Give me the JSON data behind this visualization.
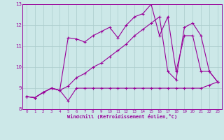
{
  "background_color": "#cce8e8",
  "line_color": "#990099",
  "grid_color": "#aacccc",
  "xlabel": "Windchill (Refroidissement éolien,°C)",
  "xlim": [
    0,
    23
  ],
  "ylim": [
    8,
    13
  ],
  "yticks": [
    8,
    9,
    10,
    11,
    12,
    13
  ],
  "xticks": [
    0,
    1,
    2,
    3,
    4,
    5,
    6,
    7,
    8,
    9,
    10,
    11,
    12,
    13,
    14,
    15,
    16,
    17,
    18,
    19,
    20,
    21,
    22,
    23
  ],
  "series1_y": [
    8.6,
    8.55,
    8.8,
    9.0,
    8.9,
    8.4,
    9.0,
    9.0,
    9.0,
    9.0,
    9.0,
    9.0,
    9.0,
    9.0,
    9.0,
    9.0,
    9.0,
    9.0,
    9.0,
    9.0,
    9.0,
    9.0,
    9.15,
    9.3
  ],
  "series2_y": [
    8.6,
    8.55,
    8.8,
    9.0,
    8.9,
    9.1,
    9.5,
    9.7,
    10.0,
    10.2,
    10.5,
    10.8,
    11.1,
    11.5,
    11.8,
    12.1,
    12.4,
    9.8,
    9.4,
    11.9,
    12.1,
    11.5,
    9.8,
    9.3
  ],
  "series3_y": [
    8.6,
    8.55,
    8.8,
    9.0,
    8.9,
    11.4,
    11.35,
    11.2,
    11.5,
    11.7,
    11.9,
    11.4,
    12.0,
    12.4,
    12.55,
    13.0,
    11.5,
    12.4,
    9.8,
    11.5,
    11.5,
    9.8,
    9.8,
    9.3
  ],
  "marker": "+",
  "marker_size": 3.5,
  "linewidth": 0.8
}
